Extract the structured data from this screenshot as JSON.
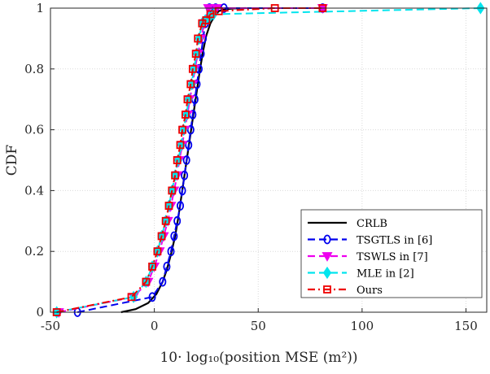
{
  "chart_data": {
    "type": "line",
    "title": "",
    "xlabel": "10· log₁₀(position MSE (m²))",
    "ylabel": "CDF",
    "xlim": [
      -50,
      160
    ],
    "ylim": [
      0,
      1
    ],
    "xticks": [
      "-50",
      "0",
      "50",
      "100",
      "150"
    ],
    "yticks": [
      "0",
      "0.2",
      "0.4",
      "0.6",
      "0.8",
      "1"
    ],
    "grid": true,
    "legend_position": "bottom-right",
    "series": [
      {
        "name": "CRLB",
        "color": "#000000",
        "dash": "solid",
        "marker": "none",
        "x": [
          -16,
          -9,
          -3,
          1,
          4,
          6,
          8,
          10,
          11.5,
          13,
          14.5,
          16,
          17.5,
          19,
          20.5,
          22,
          23.5,
          25,
          27,
          29,
          31,
          34,
          38,
          44
        ],
        "y": [
          0,
          0.01,
          0.03,
          0.06,
          0.1,
          0.14,
          0.19,
          0.25,
          0.31,
          0.38,
          0.45,
          0.52,
          0.59,
          0.66,
          0.73,
          0.8,
          0.86,
          0.91,
          0.95,
          0.975,
          0.99,
          0.996,
          0.999,
          1.0
        ]
      },
      {
        "name": "TSGTLS in [6]",
        "color": "#0000ee",
        "dash": "dashed",
        "marker": "circle",
        "x": [
          -37,
          -1,
          4,
          6,
          8,
          9.5,
          11,
          12.5,
          13.5,
          14.5,
          15.5,
          16.5,
          17.5,
          18.5,
          19.5,
          20.5,
          21.5,
          22.5,
          23.5,
          24.5,
          26.5,
          29.5,
          33.5,
          81
        ],
        "y": [
          0,
          0.05,
          0.1,
          0.15,
          0.2,
          0.25,
          0.3,
          0.35,
          0.4,
          0.45,
          0.5,
          0.55,
          0.6,
          0.65,
          0.7,
          0.75,
          0.8,
          0.85,
          0.9,
          0.95,
          1.0,
          1.0,
          1.0,
          1.0
        ]
      },
      {
        "name": "TSWLS in [7]",
        "color": "#ee00ee",
        "dash": "dashed",
        "marker": "triangle-down",
        "x": [
          -46,
          -10,
          -3,
          0,
          2.5,
          4.5,
          6.5,
          8,
          9.5,
          11,
          12,
          13.5,
          14.5,
          16,
          17,
          18.5,
          19.5,
          21,
          22.5,
          24,
          26,
          30,
          81
        ],
        "y": [
          0,
          0.05,
          0.1,
          0.15,
          0.2,
          0.25,
          0.3,
          0.35,
          0.4,
          0.45,
          0.5,
          0.55,
          0.6,
          0.65,
          0.7,
          0.75,
          0.8,
          0.85,
          0.9,
          0.95,
          1.0,
          1.0,
          1.0
        ]
      },
      {
        "name": "MLE in [2]",
        "color": "#00e5ee",
        "dash": "dashed",
        "marker": "diamond",
        "x": [
          -47,
          -10,
          -4,
          -1,
          1.5,
          3.5,
          5.5,
          7,
          8.5,
          10,
          11.5,
          13,
          14,
          15.5,
          16.5,
          18,
          19,
          20.5,
          21.5,
          23,
          24.5,
          26.5,
          28.5,
          157
        ],
        "y": [
          0,
          0.05,
          0.1,
          0.15,
          0.2,
          0.25,
          0.3,
          0.35,
          0.4,
          0.45,
          0.5,
          0.55,
          0.6,
          0.65,
          0.7,
          0.75,
          0.8,
          0.85,
          0.9,
          0.95,
          0.96,
          0.97,
          0.98,
          1.0
        ]
      },
      {
        "name": "Ours",
        "color": "#ee0000",
        "dash": "dashdot",
        "marker": "square",
        "x": [
          -47,
          -11,
          -4,
          -1,
          1.5,
          3.5,
          5.5,
          7,
          8.5,
          10,
          11,
          12.5,
          13.5,
          15,
          16,
          17.5,
          18.5,
          20,
          21,
          23,
          25,
          27,
          31,
          58,
          81
        ],
        "y": [
          0,
          0.05,
          0.1,
          0.15,
          0.2,
          0.25,
          0.3,
          0.35,
          0.4,
          0.45,
          0.5,
          0.55,
          0.6,
          0.65,
          0.7,
          0.75,
          0.8,
          0.85,
          0.9,
          0.95,
          0.96,
          0.98,
          0.99,
          1.0,
          1.0
        ]
      }
    ]
  }
}
